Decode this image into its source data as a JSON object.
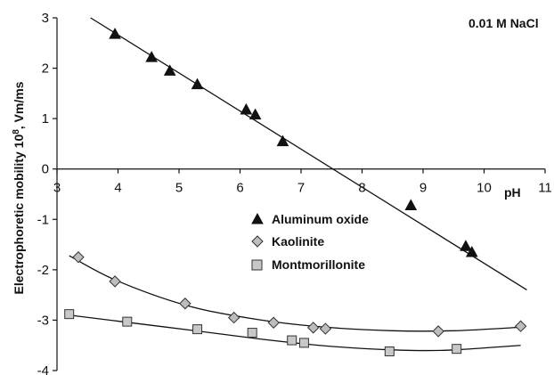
{
  "chart_data": {
    "type": "scatter",
    "title": "",
    "annotation": "0.01 M NaCl",
    "xlabel": "pH",
    "ylabel": "Electrophoretic mobility 10",
    "ylabel_exp": "8",
    "ylabel_unit": ", Vm/ms",
    "xlim": [
      3,
      11
    ],
    "ylim": [
      -4,
      3
    ],
    "x_ticks": [
      3,
      4,
      5,
      6,
      7,
      8,
      9,
      10,
      11
    ],
    "y_ticks": [
      3,
      2,
      1,
      0,
      -1,
      -2,
      -3,
      -4
    ],
    "x_tick_labels": [
      "3",
      "4",
      "5",
      "6",
      "7",
      "8",
      "9",
      "10",
      "11"
    ],
    "y_tick_labels": [
      "3",
      "2",
      "1",
      "0",
      "-1",
      "-2",
      "-3",
      "-4"
    ],
    "legend_position": "center",
    "grid": false,
    "series": [
      {
        "name": "Aluminum oxide",
        "marker": "triangle",
        "color": "#111111",
        "points": [
          [
            3.95,
            2.68
          ],
          [
            4.55,
            2.22
          ],
          [
            4.85,
            1.95
          ],
          [
            5.3,
            1.68
          ],
          [
            6.1,
            1.18
          ],
          [
            6.25,
            1.08
          ],
          [
            6.7,
            0.55
          ],
          [
            8.8,
            -0.72
          ],
          [
            9.7,
            -1.53
          ],
          [
            9.8,
            -1.65
          ]
        ],
        "fit": [
          [
            3.55,
            3.0
          ],
          [
            10.7,
            -2.4
          ]
        ]
      },
      {
        "name": "Kaolinite",
        "marker": "diamond",
        "color": "#bdbdbd",
        "points": [
          [
            3.35,
            -1.75
          ],
          [
            3.95,
            -2.23
          ],
          [
            5.1,
            -2.67
          ],
          [
            5.9,
            -2.95
          ],
          [
            6.55,
            -3.05
          ],
          [
            7.2,
            -3.15
          ],
          [
            7.4,
            -3.17
          ],
          [
            9.25,
            -3.22
          ],
          [
            10.6,
            -3.12
          ]
        ],
        "fit": [
          [
            3.2,
            -1.72
          ],
          [
            3.95,
            -2.2
          ],
          [
            5.1,
            -2.7
          ],
          [
            6.2,
            -2.97
          ],
          [
            7.3,
            -3.13
          ],
          [
            8.5,
            -3.21
          ],
          [
            9.5,
            -3.21
          ],
          [
            10.6,
            -3.14
          ]
        ]
      },
      {
        "name": "Montmorillonite",
        "marker": "square",
        "color": "#c8c8c8",
        "points": [
          [
            3.2,
            -2.88
          ],
          [
            4.15,
            -3.03
          ],
          [
            5.3,
            -3.18
          ],
          [
            6.2,
            -3.25
          ],
          [
            6.85,
            -3.4
          ],
          [
            7.05,
            -3.45
          ],
          [
            8.45,
            -3.62
          ],
          [
            9.55,
            -3.57
          ]
        ],
        "fit": [
          [
            3.2,
            -2.9
          ],
          [
            4.0,
            -3.02
          ],
          [
            5.2,
            -3.2
          ],
          [
            6.3,
            -3.37
          ],
          [
            7.3,
            -3.5
          ],
          [
            8.3,
            -3.58
          ],
          [
            9.3,
            -3.6
          ],
          [
            10.6,
            -3.5
          ]
        ]
      }
    ]
  }
}
